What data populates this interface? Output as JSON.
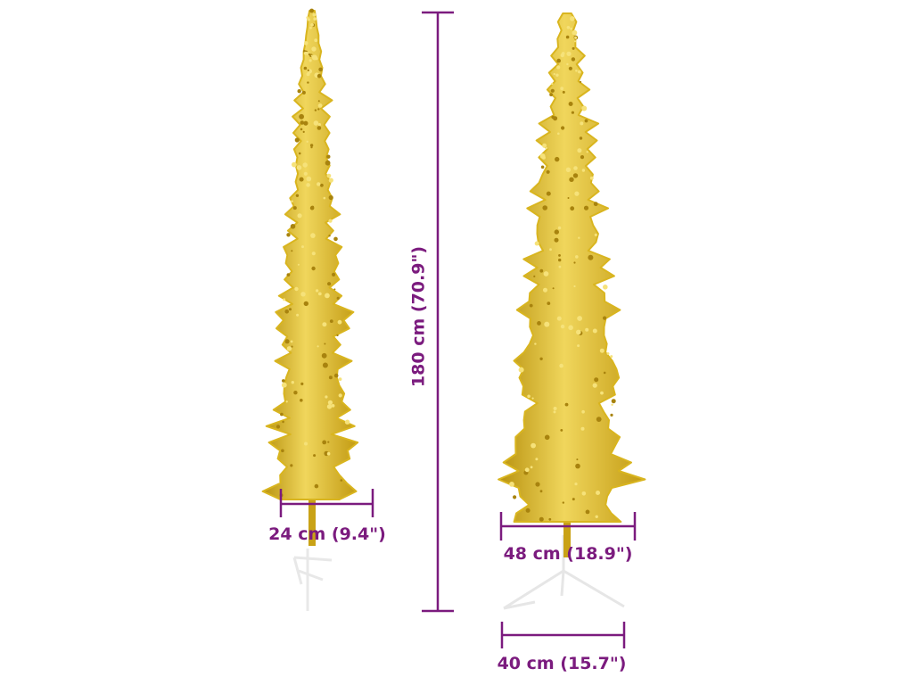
{
  "dimensions": {
    "height_label": "180 cm (70.9\")",
    "left_tree_width_label": "24 cm (9.4\")",
    "right_tree_width_label": "48 cm (18.9\")",
    "stand_width_label": "40 cm (15.7\")"
  },
  "colors": {
    "dimension_line": "#7b1b7e",
    "tree_gold": "#d9b51f",
    "tree_highlight": "#f3dc6a",
    "tree_shadow": "#a8830e",
    "stand": "#f2f2f2"
  }
}
